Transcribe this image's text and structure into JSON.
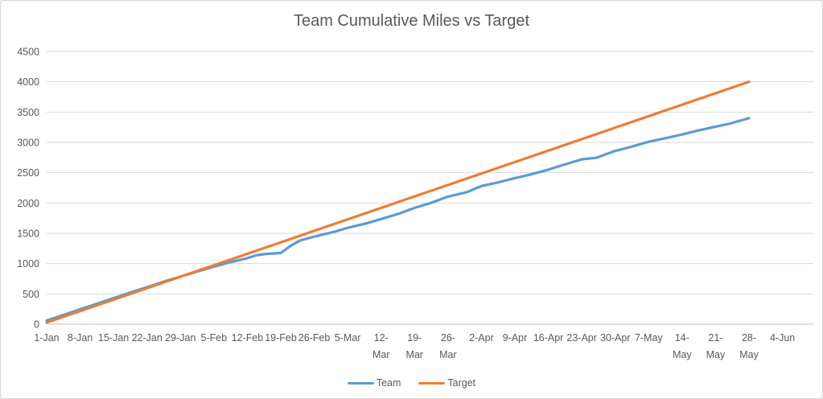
{
  "chart": {
    "title": "Team Cumulative Miles vs Target"
  },
  "chart_data": {
    "type": "line",
    "title": "Team Cumulative Miles vs Target",
    "xlabel": "",
    "ylabel": "",
    "categories": [
      "1-Jan",
      "8-Jan",
      "15-Jan",
      "22-Jan",
      "29-Jan",
      "5-Feb",
      "12-Feb",
      "19-Feb",
      "26-Feb",
      "5-Mar",
      "12-Mar",
      "19-Mar",
      "26-Mar",
      "2-Apr",
      "9-Apr",
      "16-Apr",
      "23-Apr",
      "30-Apr",
      "7-May",
      "14-May",
      "21-May",
      "28-May",
      "4-Jun"
    ],
    "series": [
      {
        "name": "Team",
        "color": "#5B9BD5",
        "values": [
          60,
          245,
          430,
          610,
          785,
          950,
          1090,
          1175,
          1445,
          1590,
          1735,
          1920,
          2105,
          2280,
          2410,
          2550,
          2720,
          2860,
          3010,
          3130,
          3260,
          3400,
          null
        ]
      },
      {
        "name": "Target",
        "color": "#ED7D31",
        "values": [
          27,
          190,
          381,
          571,
          762,
          952,
          1143,
          1333,
          1524,
          1714,
          1905,
          2095,
          2286,
          2476,
          2667,
          2857,
          3048,
          3238,
          3429,
          3619,
          3810,
          4000,
          null
        ]
      }
    ],
    "ylim": [
      0,
      4500
    ],
    "ytick_step": 500,
    "ytick_labels": [
      "0",
      "500",
      "1000",
      "1500",
      "2000",
      "2500",
      "3000",
      "3500",
      "4000",
      "4500"
    ],
    "grid": true,
    "legend_position": "bottom",
    "team_daily_estimate": [
      [
        0,
        60
      ],
      [
        4,
        165
      ],
      [
        7,
        245
      ],
      [
        11,
        350
      ],
      [
        14,
        430
      ],
      [
        18,
        535
      ],
      [
        21,
        610
      ],
      [
        25,
        715
      ],
      [
        28,
        785
      ],
      [
        32,
        880
      ],
      [
        35,
        950
      ],
      [
        38,
        1015
      ],
      [
        42,
        1090
      ],
      [
        44,
        1140
      ],
      [
        46,
        1160
      ],
      [
        49,
        1175
      ],
      [
        51,
        1290
      ],
      [
        53,
        1380
      ],
      [
        56,
        1445
      ],
      [
        60,
        1520
      ],
      [
        63,
        1590
      ],
      [
        67,
        1665
      ],
      [
        70,
        1735
      ],
      [
        74,
        1830
      ],
      [
        77,
        1920
      ],
      [
        80,
        1990
      ],
      [
        84,
        2105
      ],
      [
        88,
        2180
      ],
      [
        91,
        2280
      ],
      [
        94,
        2330
      ],
      [
        98,
        2410
      ],
      [
        101,
        2465
      ],
      [
        105,
        2550
      ],
      [
        108,
        2625
      ],
      [
        112,
        2720
      ],
      [
        115,
        2745
      ],
      [
        119,
        2860
      ],
      [
        122,
        2920
      ],
      [
        126,
        3010
      ],
      [
        129,
        3060
      ],
      [
        133,
        3130
      ],
      [
        136,
        3190
      ],
      [
        140,
        3260
      ],
      [
        143,
        3310
      ],
      [
        147,
        3400
      ]
    ],
    "target_line_endpoints": [
      [
        0,
        27
      ],
      [
        147,
        4000
      ]
    ],
    "wrapped_tick_indices": [
      10,
      11,
      12,
      19,
      20,
      21
    ],
    "colors": {
      "team": "#5B9BD5",
      "target": "#ED7D31",
      "gridline": "#D9D9D9",
      "axis_line": "#BFBFBF",
      "text": "#595959"
    }
  }
}
